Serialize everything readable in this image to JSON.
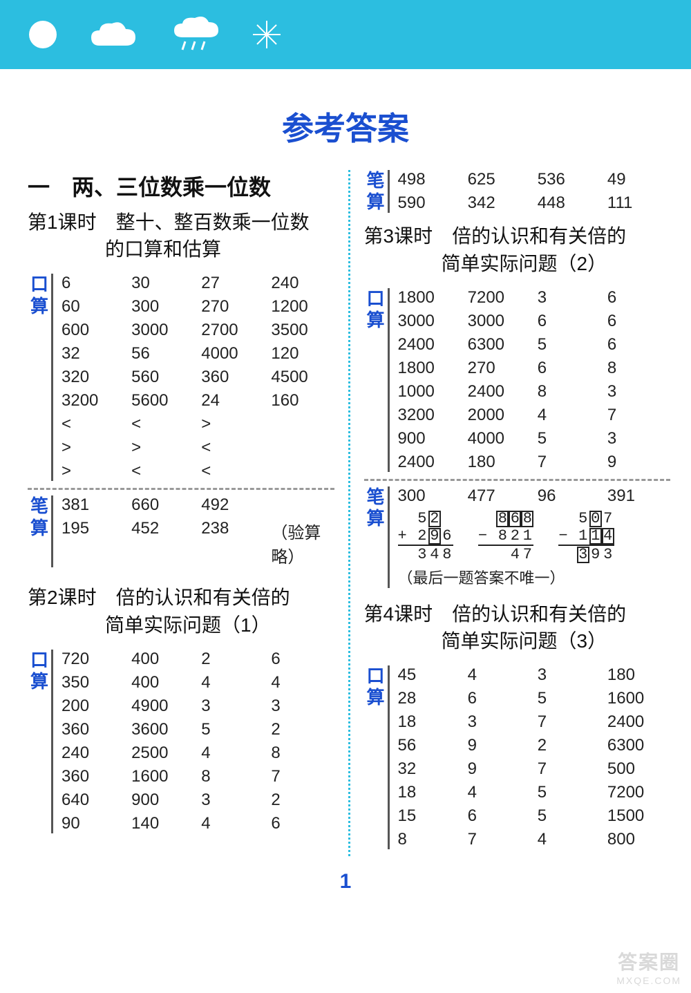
{
  "colors": {
    "banner_bg": "#2cbee0",
    "title_color": "#1a4fd0",
    "label_color": "#1a4fd0",
    "text_color": "#222222",
    "watermark_color": "#d9d9d9"
  },
  "main_title": "参考答案",
  "section_labels": {
    "mental": "口算",
    "written": "笔算"
  },
  "page_number": "1",
  "watermark": {
    "line1": "答案圈",
    "line2": "MXQE.COM"
  },
  "left": {
    "unit_title": "一　两、三位数乘一位数",
    "lesson1": {
      "title_l1": "第1课时　整十、整百数乘一位数",
      "title_l2": "的口算和估算",
      "mental_rows": [
        [
          "6",
          "30",
          "27",
          "240"
        ],
        [
          "60",
          "300",
          "270",
          "1200"
        ],
        [
          "600",
          "3000",
          "2700",
          "3500"
        ],
        [
          "32",
          "56",
          "4000",
          "120"
        ],
        [
          "320",
          "560",
          "360",
          "4500"
        ],
        [
          "3200",
          "5600",
          "24",
          "160"
        ],
        [
          "<",
          "<",
          ">",
          ""
        ],
        [
          ">",
          ">",
          "<",
          ""
        ],
        [
          ">",
          "<",
          "<",
          ""
        ]
      ],
      "written_rows": [
        [
          "381",
          "660",
          "492",
          ""
        ],
        [
          "195",
          "452",
          "238",
          "（验算略）"
        ]
      ]
    },
    "lesson2": {
      "title_l1": "第2课时　倍的认识和有关倍的",
      "title_l2": "简单实际问题（1）",
      "mental_rows": [
        [
          "720",
          "400",
          "2",
          "6"
        ],
        [
          "350",
          "400",
          "4",
          "4"
        ],
        [
          "200",
          "4900",
          "3",
          "3"
        ],
        [
          "360",
          "3600",
          "5",
          "2"
        ],
        [
          "240",
          "2500",
          "4",
          "8"
        ],
        [
          "360",
          "1600",
          "8",
          "7"
        ],
        [
          "640",
          "900",
          "3",
          "2"
        ],
        [
          "90",
          "140",
          "4",
          "6"
        ]
      ]
    }
  },
  "right": {
    "written_top_rows": [
      [
        "498",
        "625",
        "536",
        "49"
      ],
      [
        "590",
        "342",
        "448",
        "111"
      ]
    ],
    "lesson3": {
      "title_l1": "第3课时　倍的认识和有关倍的",
      "title_l2": "简单实际问题（2）",
      "mental_rows": [
        [
          "1800",
          "7200",
          "3",
          "6"
        ],
        [
          "3000",
          "3000",
          "6",
          "6"
        ],
        [
          "2400",
          "6300",
          "5",
          "6"
        ],
        [
          "1800",
          "270",
          "6",
          "8"
        ],
        [
          "1000",
          "2400",
          "8",
          "3"
        ],
        [
          "3200",
          "2000",
          "4",
          "7"
        ],
        [
          "900",
          "4000",
          "5",
          "3"
        ],
        [
          "2400",
          "180",
          "7",
          "9"
        ]
      ],
      "written_first_row": [
        "300",
        "477",
        "96",
        "391"
      ],
      "math_problems": [
        {
          "op": "+",
          "top": [
            "5",
            "[2]",
            " "
          ],
          "second": [
            "2",
            "[9]",
            "6"
          ],
          "result": [
            "3",
            "4",
            "8"
          ]
        },
        {
          "op": "−",
          "top": [
            "[8]",
            "[6]",
            "[8]"
          ],
          "second": [
            "8",
            "2",
            "1"
          ],
          "result": [
            " ",
            "4",
            "7"
          ]
        },
        {
          "op": "−",
          "top": [
            "5",
            "[0]",
            "7"
          ],
          "second": [
            "1",
            "[1]",
            "[4]"
          ],
          "result": [
            "[3]",
            "9",
            "3"
          ]
        }
      ],
      "note": "（最后一题答案不唯一）"
    },
    "lesson4": {
      "title_l1": "第4课时　倍的认识和有关倍的",
      "title_l2": "简单实际问题（3）",
      "mental_rows": [
        [
          "45",
          "4",
          "3",
          "180"
        ],
        [
          "28",
          "6",
          "5",
          "1600"
        ],
        [
          "18",
          "3",
          "7",
          "2400"
        ],
        [
          "56",
          "9",
          "2",
          "6300"
        ],
        [
          "32",
          "9",
          "7",
          "500"
        ],
        [
          "18",
          "4",
          "5",
          "7200"
        ],
        [
          "15",
          "6",
          "5",
          "1500"
        ],
        [
          "8",
          "7",
          "4",
          "800"
        ]
      ]
    }
  }
}
